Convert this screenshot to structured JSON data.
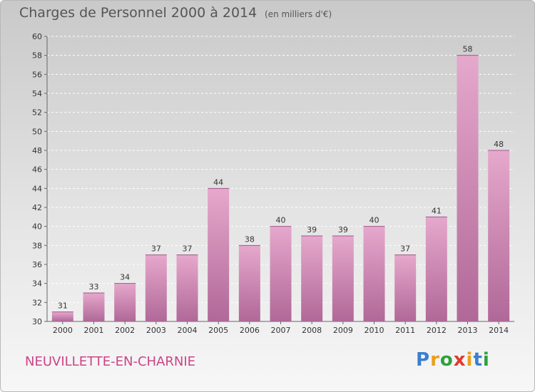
{
  "title": "Charges de Personnel 2000 à 2014",
  "subtitle": "(en milliers d'€)",
  "commune": "NEUVILLETTE-EN-CHARNIE",
  "logo": "Proxiti",
  "colors": {
    "bar_light": "#e6a8cc",
    "bar_dark": "#b06898",
    "title": "#555555",
    "commune": "#cc4488"
  },
  "chart_data": {
    "type": "bar",
    "categories": [
      "2000",
      "2001",
      "2002",
      "2003",
      "2004",
      "2005",
      "2006",
      "2007",
      "2008",
      "2009",
      "2010",
      "2011",
      "2012",
      "2013",
      "2014"
    ],
    "values": [
      31,
      33,
      34,
      37,
      37,
      44,
      38,
      40,
      39,
      39,
      40,
      37,
      41,
      58,
      48
    ],
    "ylim": [
      30,
      60
    ],
    "yticks": [
      30,
      32,
      34,
      36,
      38,
      40,
      42,
      44,
      46,
      48,
      50,
      52,
      54,
      56,
      58,
      60
    ],
    "grid": true
  }
}
